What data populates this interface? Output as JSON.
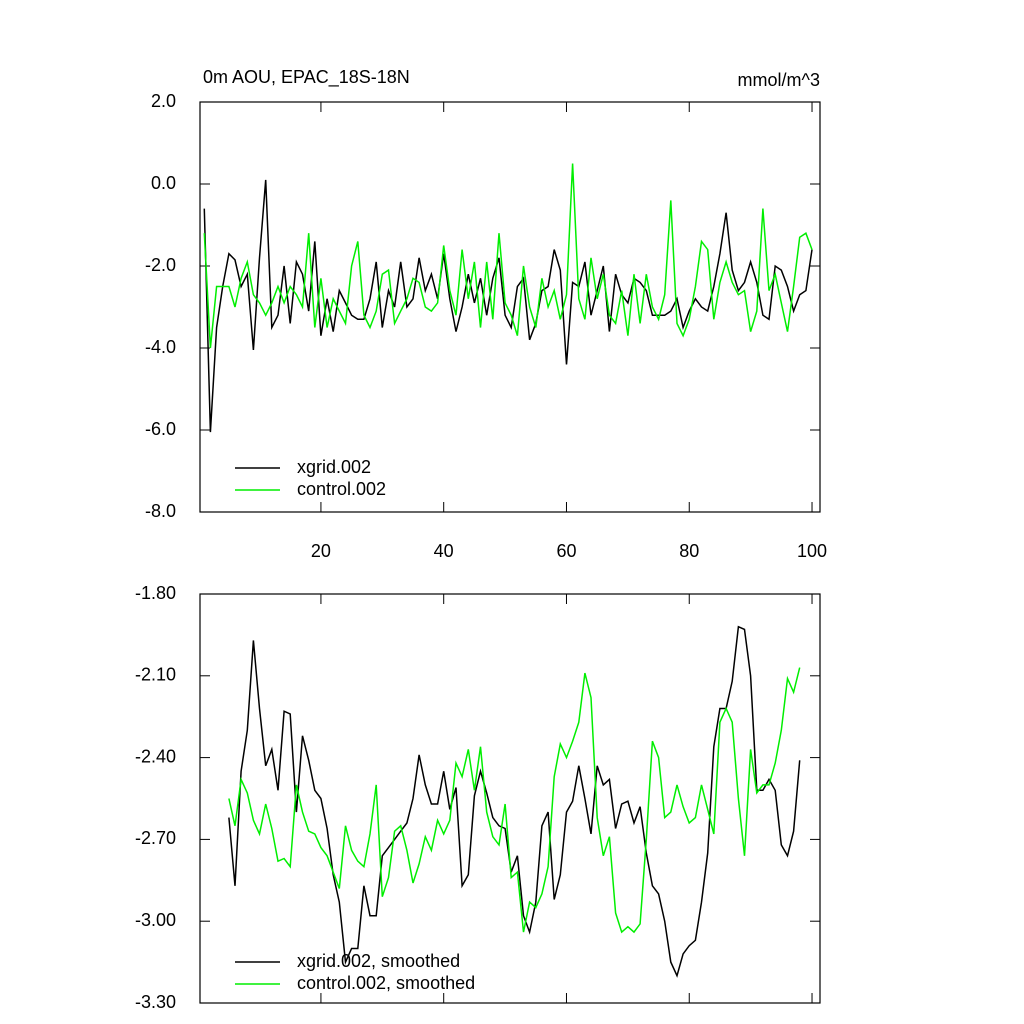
{
  "chart_data": [
    {
      "type": "line",
      "title": "0m AOU, EPAC_18S-18N",
      "units": "mmol/m^3",
      "x": [
        1,
        2,
        3,
        4,
        5,
        6,
        7,
        8,
        9,
        10,
        11,
        12,
        13,
        14,
        15,
        16,
        17,
        18,
        19,
        20,
        21,
        22,
        23,
        24,
        25,
        26,
        27,
        28,
        29,
        30,
        31,
        32,
        33,
        34,
        35,
        36,
        37,
        38,
        39,
        40,
        41,
        42,
        43,
        44,
        45,
        46,
        47,
        48,
        49,
        50,
        51,
        52,
        53,
        54,
        55,
        56,
        57,
        58,
        59,
        60,
        61,
        62,
        63,
        64,
        65,
        66,
        67,
        68,
        69,
        70,
        71,
        72,
        73,
        74,
        75,
        76,
        77,
        78,
        79,
        80,
        81,
        82,
        83,
        84,
        85,
        86,
        87,
        88,
        89,
        90,
        91,
        92,
        93,
        94,
        95,
        96,
        97,
        98,
        99,
        100
      ],
      "series": [
        {
          "name": "xgrid.002",
          "color": "#000000",
          "values": [
            -0.6,
            -6.05,
            -3.5,
            -2.5,
            -1.7,
            -1.85,
            -2.5,
            -2.2,
            -4.05,
            -1.8,
            0.1,
            -3.5,
            -3.2,
            -2.0,
            -3.4,
            -1.9,
            -2.2,
            -3.1,
            -1.4,
            -3.7,
            -2.8,
            -3.6,
            -2.6,
            -2.9,
            -3.2,
            -3.3,
            -3.3,
            -2.8,
            -1.9,
            -3.5,
            -2.6,
            -3.0,
            -1.9,
            -3.0,
            -2.8,
            -1.8,
            -2.6,
            -2.2,
            -2.8,
            -1.7,
            -2.8,
            -3.6,
            -3.0,
            -2.2,
            -2.9,
            -2.3,
            -3.2,
            -2.3,
            -1.8,
            -3.2,
            -3.5,
            -2.5,
            -2.3,
            -3.8,
            -3.4,
            -2.6,
            -2.5,
            -1.6,
            -2.1,
            -4.4,
            -2.4,
            -2.5,
            -1.9,
            -3.2,
            -2.6,
            -2.0,
            -3.6,
            -2.2,
            -2.7,
            -2.9,
            -2.3,
            -2.4,
            -2.6,
            -3.2,
            -3.2,
            -3.2,
            -3.1,
            -2.8,
            -3.5,
            -3.1,
            -2.8,
            -3.0,
            -3.1,
            -2.5,
            -1.7,
            -0.7,
            -2.1,
            -2.6,
            -2.4,
            -1.9,
            -2.4,
            -3.2,
            -3.3,
            -2.0,
            -2.1,
            -2.5,
            -3.1,
            -2.7,
            -2.6,
            -1.6
          ]
        },
        {
          "name": "control.002",
          "color": "#00ee00",
          "values": [
            -1.2,
            -4.0,
            -2.5,
            -2.5,
            -2.5,
            -3.0,
            -2.3,
            -1.9,
            -2.7,
            -2.9,
            -3.2,
            -2.9,
            -2.5,
            -2.9,
            -2.5,
            -2.7,
            -3.0,
            -1.2,
            -3.5,
            -2.3,
            -3.5,
            -2.8,
            -3.1,
            -3.4,
            -2.0,
            -1.4,
            -3.2,
            -3.5,
            -3.1,
            -2.2,
            -2.1,
            -3.4,
            -3.1,
            -2.8,
            -2.3,
            -2.4,
            -3.0,
            -3.1,
            -2.9,
            -1.5,
            -2.6,
            -3.2,
            -1.6,
            -2.8,
            -1.9,
            -3.5,
            -1.9,
            -3.3,
            -1.2,
            -2.9,
            -3.2,
            -3.7,
            -2.0,
            -3.0,
            -3.5,
            -2.3,
            -3.0,
            -2.6,
            -3.3,
            -2.7,
            0.5,
            -2.8,
            -3.3,
            -1.8,
            -2.8,
            -2.2,
            -3.2,
            -3.4,
            -2.6,
            -3.7,
            -2.2,
            -3.4,
            -2.2,
            -3.0,
            -3.3,
            -2.7,
            -0.4,
            -3.4,
            -3.7,
            -3.3,
            -2.5,
            -1.4,
            -1.6,
            -3.3,
            -2.4,
            -1.9,
            -2.4,
            -2.7,
            -2.6,
            -3.6,
            -3.1,
            -0.6,
            -2.6,
            -2.2,
            -2.9,
            -3.6,
            -2.5,
            -1.3,
            -1.2,
            -1.6
          ]
        }
      ],
      "xlim": [
        0.3,
        101.3
      ],
      "xticks": [
        20,
        40,
        60,
        80,
        100
      ],
      "show_xtick_labels": true,
      "ylim": [
        -8,
        2
      ],
      "yticks": [
        {
          "value": -8,
          "label": "-8.0"
        },
        {
          "value": -6,
          "label": "-6.0"
        },
        {
          "value": -4,
          "label": "-4.0"
        },
        {
          "value": -2,
          "label": "-2.0"
        },
        {
          "value": 0,
          "label": "0.0"
        },
        {
          "value": 2,
          "label": "2.0"
        }
      ]
    },
    {
      "type": "line",
      "x": [
        5,
        6,
        7,
        8,
        9,
        10,
        11,
        12,
        13,
        14,
        15,
        16,
        17,
        18,
        19,
        20,
        21,
        22,
        23,
        24,
        25,
        26,
        27,
        28,
        29,
        30,
        31,
        32,
        33,
        34,
        35,
        36,
        37,
        38,
        39,
        40,
        41,
        42,
        43,
        44,
        45,
        46,
        47,
        48,
        49,
        50,
        51,
        52,
        53,
        54,
        55,
        56,
        57,
        58,
        59,
        60,
        61,
        62,
        63,
        64,
        65,
        66,
        67,
        68,
        69,
        70,
        71,
        72,
        73,
        74,
        75,
        76,
        77,
        78,
        79,
        80,
        81,
        82,
        83,
        84,
        85,
        86,
        87,
        88,
        89,
        90,
        91,
        92,
        93,
        94,
        95,
        96,
        97,
        98
      ],
      "series": [
        {
          "name": "xgrid.002, smoothed",
          "color": "#000000",
          "values": [
            -2.62,
            -2.87,
            -2.45,
            -2.3,
            -1.97,
            -2.22,
            -2.43,
            -2.37,
            -2.52,
            -2.23,
            -2.24,
            -2.6,
            -2.32,
            -2.41,
            -2.52,
            -2.55,
            -2.66,
            -2.83,
            -2.93,
            -3.15,
            -3.1,
            -3.1,
            -2.87,
            -2.98,
            -2.98,
            -2.76,
            -2.73,
            -2.7,
            -2.67,
            -2.64,
            -2.55,
            -2.39,
            -2.5,
            -2.57,
            -2.57,
            -2.45,
            -2.59,
            -2.51,
            -2.87,
            -2.83,
            -2.54,
            -2.45,
            -2.53,
            -2.62,
            -2.65,
            -2.66,
            -2.82,
            -2.76,
            -2.98,
            -3.04,
            -2.93,
            -2.65,
            -2.6,
            -2.92,
            -2.83,
            -2.6,
            -2.56,
            -2.43,
            -2.55,
            -2.68,
            -2.43,
            -2.5,
            -2.48,
            -2.66,
            -2.57,
            -2.56,
            -2.64,
            -2.58,
            -2.75,
            -2.87,
            -2.9,
            -3.0,
            -3.15,
            -3.2,
            -3.12,
            -3.09,
            -3.07,
            -2.93,
            -2.75,
            -2.36,
            -2.22,
            -2.22,
            -2.12,
            -1.92,
            -1.93,
            -2.1,
            -2.52,
            -2.52,
            -2.48,
            -2.52,
            -2.72,
            -2.76,
            -2.67,
            -2.41
          ]
        },
        {
          "name": "control.002, smoothed",
          "color": "#00ee00",
          "values": [
            -2.55,
            -2.65,
            -2.48,
            -2.53,
            -2.63,
            -2.68,
            -2.57,
            -2.66,
            -2.78,
            -2.77,
            -2.8,
            -2.5,
            -2.6,
            -2.67,
            -2.68,
            -2.73,
            -2.76,
            -2.82,
            -2.88,
            -2.65,
            -2.74,
            -2.78,
            -2.8,
            -2.68,
            -2.5,
            -2.91,
            -2.84,
            -2.67,
            -2.65,
            -2.74,
            -2.86,
            -2.79,
            -2.69,
            -2.74,
            -2.63,
            -2.68,
            -2.63,
            -2.42,
            -2.47,
            -2.37,
            -2.52,
            -2.36,
            -2.6,
            -2.69,
            -2.72,
            -2.57,
            -2.84,
            -2.82,
            -3.04,
            -2.93,
            -2.95,
            -2.9,
            -2.8,
            -2.47,
            -2.35,
            -2.4,
            -2.34,
            -2.27,
            -2.09,
            -2.18,
            -2.62,
            -2.76,
            -2.69,
            -2.97,
            -3.04,
            -3.02,
            -3.04,
            -3.01,
            -2.7,
            -2.34,
            -2.4,
            -2.62,
            -2.6,
            -2.5,
            -2.58,
            -2.64,
            -2.62,
            -2.5,
            -2.59,
            -2.68,
            -2.27,
            -2.22,
            -2.27,
            -2.55,
            -2.76,
            -2.37,
            -2.53,
            -2.5,
            -2.5,
            -2.42,
            -2.3,
            -2.11,
            -2.16,
            -2.07
          ]
        }
      ],
      "xlim": [
        0.3,
        101.3
      ],
      "xticks": [
        20,
        40,
        60,
        80,
        100
      ],
      "show_xtick_labels": false,
      "ylim": [
        -3.3,
        -1.8
      ],
      "yticks": [
        {
          "value": -3.3,
          "label": "-3.30"
        },
        {
          "value": -3.0,
          "label": "-3.00"
        },
        {
          "value": -2.7,
          "label": "-2.70"
        },
        {
          "value": -2.4,
          "label": "-2.40"
        },
        {
          "value": -2.1,
          "label": "-2.10"
        },
        {
          "value": -1.8,
          "label": "-1.80"
        }
      ]
    }
  ]
}
